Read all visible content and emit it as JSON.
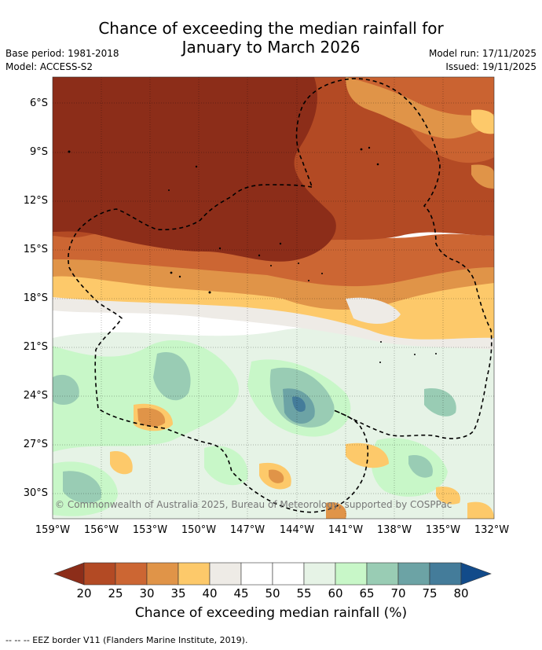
{
  "title": {
    "line1": "Chance of exceeding the median rainfall for",
    "line2": "January to March 2026"
  },
  "meta": {
    "base_period": "Base period: 1981-2018",
    "model": "Model: ACCESS-S2",
    "model_run": "Model run: 17/11/2025",
    "issued": "Issued: 19/11/2025"
  },
  "map": {
    "latitude_labels": [
      "6°S",
      "9°S",
      "12°S",
      "15°S",
      "18°S",
      "21°S",
      "24°S",
      "27°S",
      "30°S"
    ],
    "longitude_labels": [
      "159°W",
      "156°W",
      "153°W",
      "150°W",
      "147°W",
      "144°W",
      "141°W",
      "138°W",
      "135°W",
      "132°W"
    ],
    "copyright": "© Commonwealth of Australia 2025, Bureau of Meteorology, supported by COSPPac",
    "boundary_style": "dashed black"
  },
  "colorbar": {
    "label": "Chance of exceeding median rainfall (%)",
    "ticks": [
      "20",
      "25",
      "30",
      "35",
      "40",
      "45",
      "50",
      "55",
      "60",
      "65",
      "70",
      "75",
      "80"
    ],
    "colors": [
      "#8c2d19",
      "#b34a24",
      "#cc6633",
      "#e09448",
      "#fdc96a",
      "#eeebe6",
      "#ffffff",
      "#ffffff",
      "#e6f3e6",
      "#c8f7c8",
      "#99ccb4",
      "#6ca3a5",
      "#447c9a",
      "#124b8a"
    ]
  },
  "footnote": "--  --  -- EEZ border V11 (Flanders Marine Institute, 2019)."
}
